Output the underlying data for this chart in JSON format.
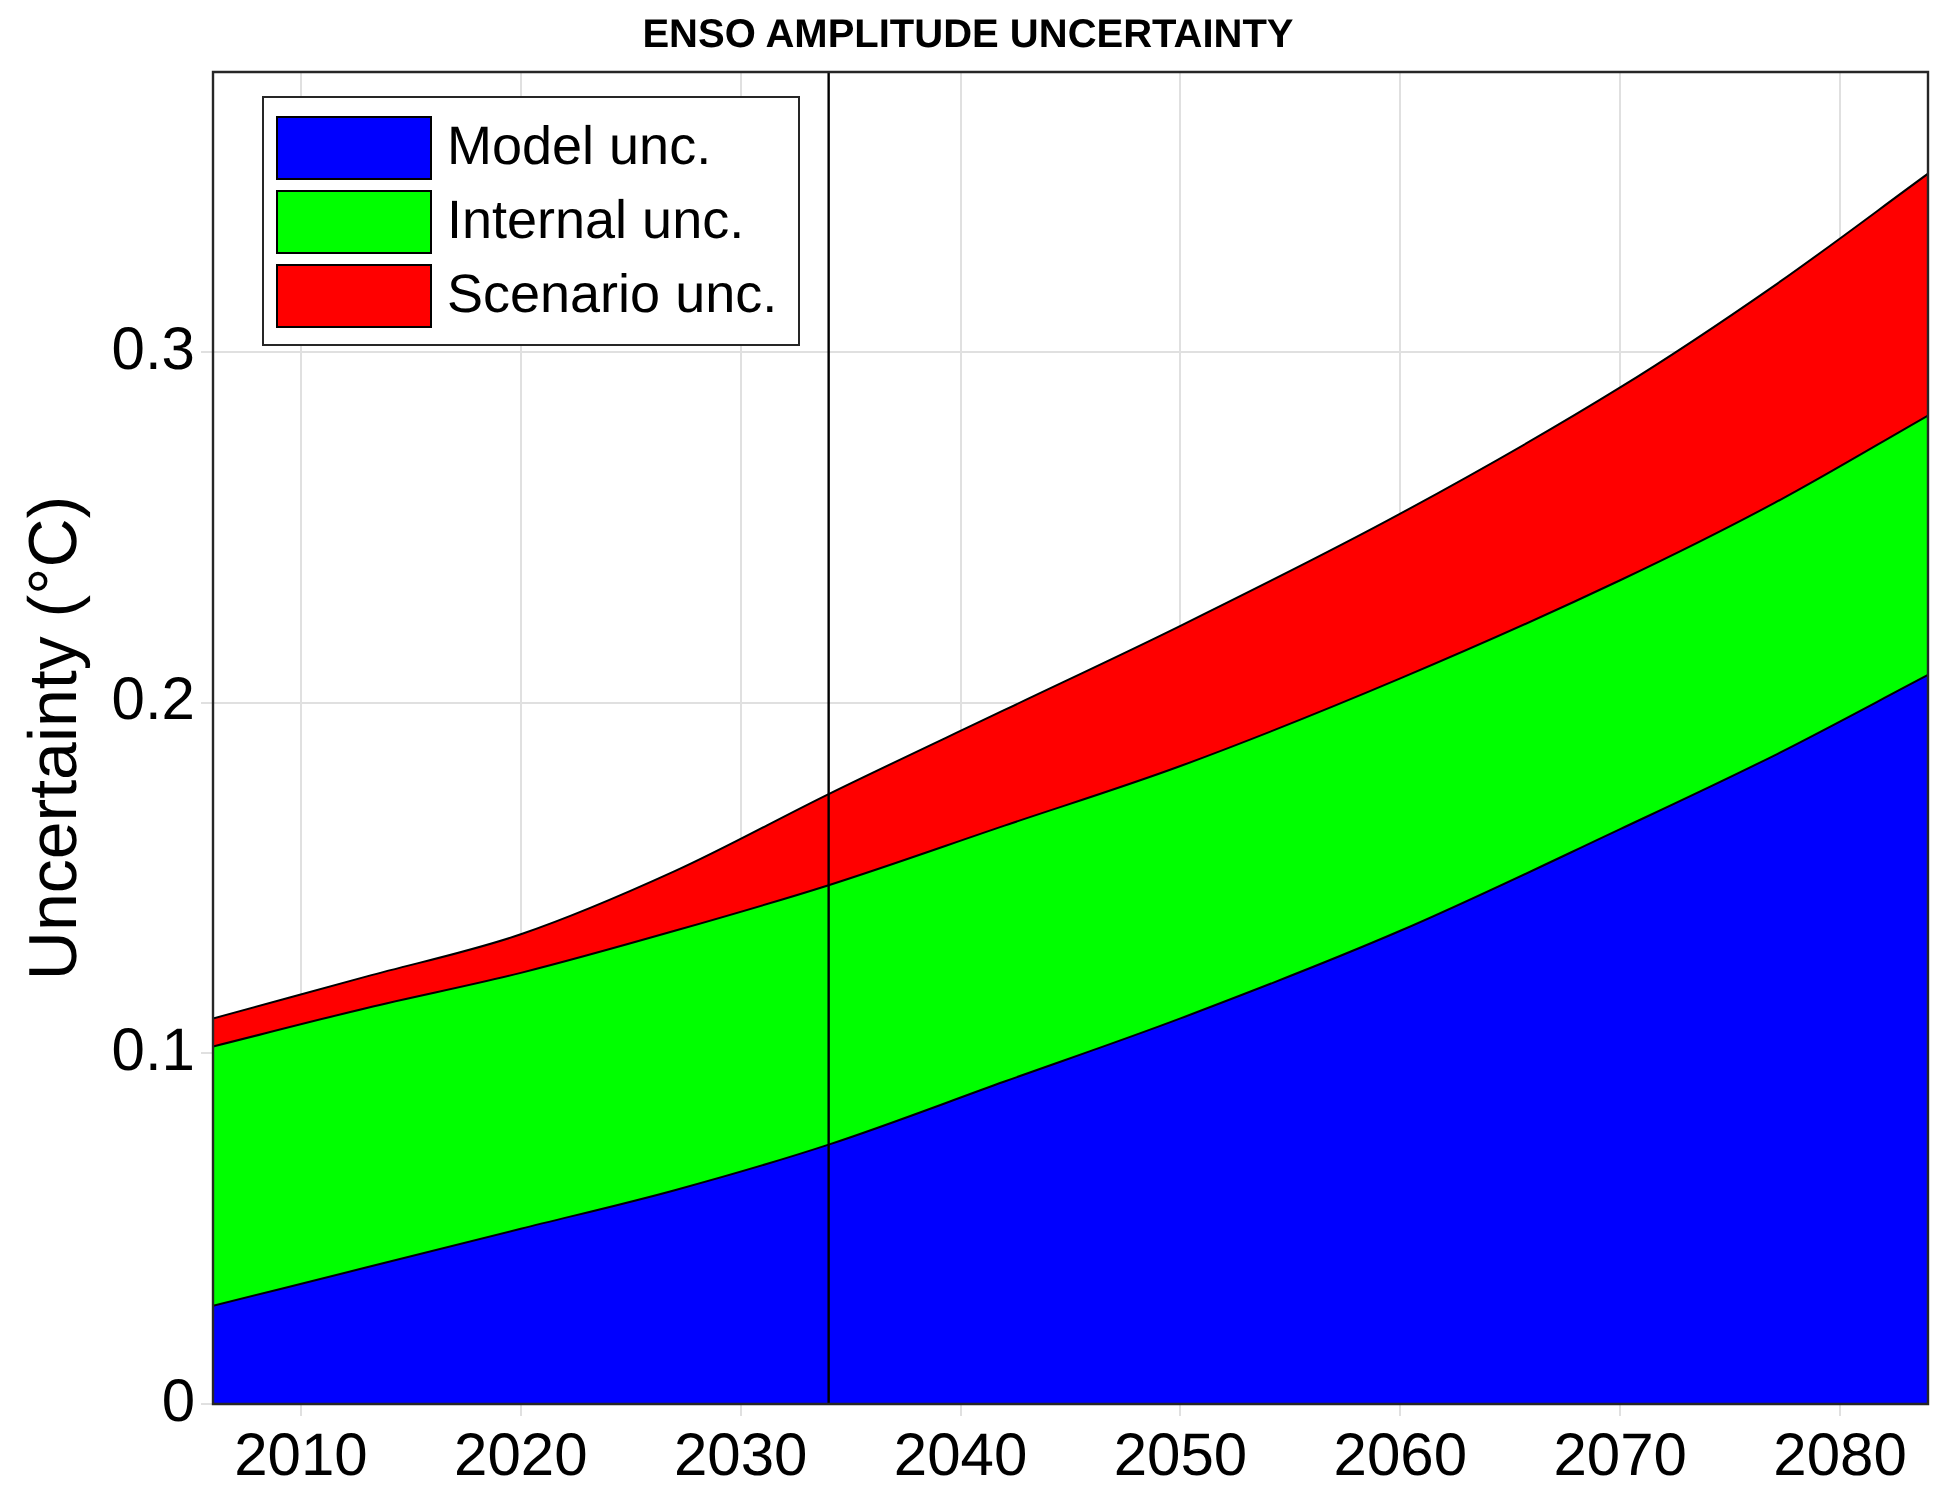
{
  "chart_data": {
    "type": "area",
    "title": "ENSO AMPLITUDE UNCERTAINTY",
    "ylabel": "Uncertainty (°C)",
    "x": [
      2006,
      2013,
      2020,
      2027,
      2034,
      2042,
      2050,
      2060,
      2070,
      2077,
      2084
    ],
    "stacked": true,
    "series": [
      {
        "name": "Model unc.",
        "color": "#0000ff",
        "values": [
          0.028,
          0.039,
          0.05,
          0.061,
          0.074,
          0.092,
          0.11,
          0.135,
          0.164,
          0.185,
          0.208
        ]
      },
      {
        "name": "Internal unc.",
        "color": "#00ff00",
        "values": [
          0.074,
          0.074,
          0.073,
          0.074,
          0.074,
          0.073,
          0.072,
          0.072,
          0.071,
          0.072,
          0.074
        ]
      },
      {
        "name": "Scenario unc.",
        "color": "#ff0000",
        "values": [
          0.008,
          0.009,
          0.011,
          0.017,
          0.026,
          0.033,
          0.04,
          0.047,
          0.055,
          0.062,
          0.069
        ]
      }
    ],
    "xlim": [
      2006,
      2084
    ],
    "xticks": [
      2010,
      2020,
      2030,
      2040,
      2050,
      2060,
      2070,
      2080
    ],
    "ylim": [
      0,
      0.38
    ],
    "yticks": [
      0,
      0.1,
      0.2,
      0.3
    ],
    "ref_lines": [
      {
        "axis": "x",
        "value": 2034,
        "color": "#000000"
      }
    ],
    "grid": true,
    "legend": "top left"
  }
}
